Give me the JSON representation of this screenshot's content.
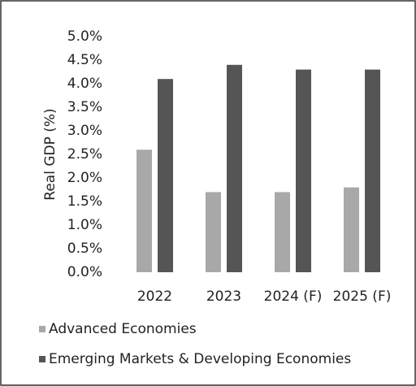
{
  "chart_data": {
    "type": "bar",
    "y_label": "Real GDP (%)",
    "categories": [
      "2022",
      "2023",
      "2024 (F)",
      "2025 (F)"
    ],
    "series": [
      {
        "name": "Advanced Economies",
        "color": "#a8a8a8",
        "values": [
          2.6,
          1.7,
          1.7,
          1.8
        ]
      },
      {
        "name": "Emerging Markets & Developing Economies",
        "color": "#555555",
        "values": [
          4.1,
          4.4,
          4.3,
          4.3
        ]
      }
    ],
    "ylim": [
      0,
      5
    ],
    "yticks": [
      {
        "value": 0,
        "label": "0.0%"
      },
      {
        "value": 0.5,
        "label": "0.5%"
      },
      {
        "value": 1,
        "label": "1.0%"
      },
      {
        "value": 1.5,
        "label": "1.5%"
      },
      {
        "value": 2,
        "label": "2.0%"
      },
      {
        "value": 2.5,
        "label": "2.5%"
      },
      {
        "value": 3,
        "label": "3.0%"
      },
      {
        "value": 3.5,
        "label": "3.5%"
      },
      {
        "value": 4,
        "label": "4.0%"
      },
      {
        "value": 4.5,
        "label": "4.5%"
      },
      {
        "value": 5,
        "label": "5.0%"
      }
    ],
    "grid": false,
    "legend": "bottom"
  }
}
